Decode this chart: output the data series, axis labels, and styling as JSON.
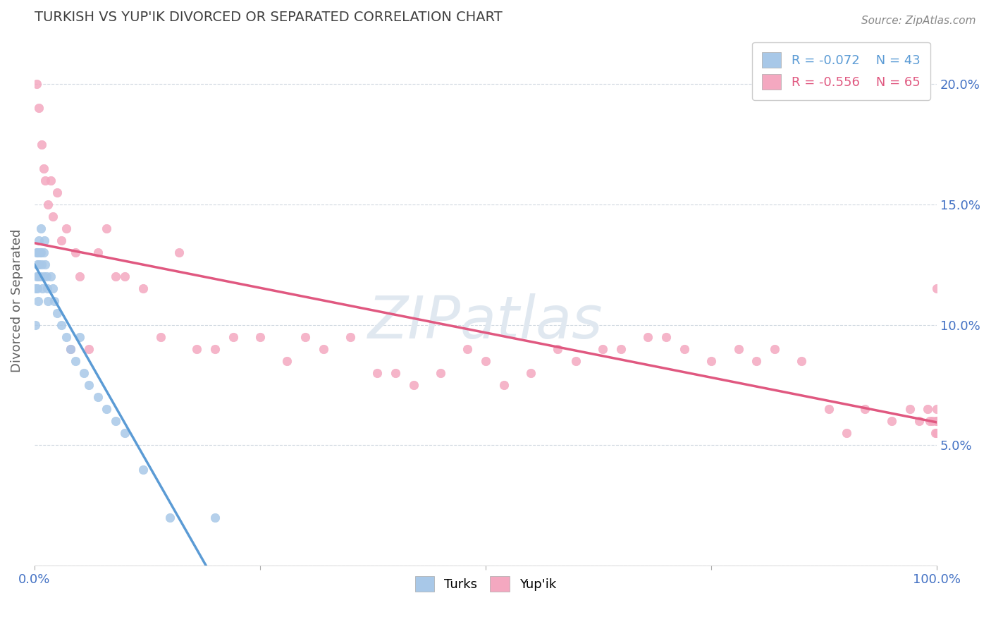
{
  "title": "TURKISH VS YUP'IK DIVORCED OR SEPARATED CORRELATION CHART",
  "source_text": "Source: ZipAtlas.com",
  "ylabel": "Divorced or Separated",
  "x_min": 0.0,
  "x_max": 1.0,
  "y_min": 0.0,
  "y_max": 0.22,
  "turks_color": "#a8c8e8",
  "yupik_color": "#f4a8c0",
  "turks_line_color": "#5b9bd5",
  "yupik_line_color": "#e05880",
  "dashed_line_color": "#a0c0e0",
  "turks_r": -0.072,
  "turks_n": 43,
  "yupik_r": -0.556,
  "yupik_n": 65,
  "legend_label_turks": "Turks",
  "legend_label_yupik": "Yup'ik",
  "turks_scatter_x": [
    0.001,
    0.001,
    0.002,
    0.002,
    0.003,
    0.003,
    0.003,
    0.004,
    0.004,
    0.004,
    0.005,
    0.005,
    0.006,
    0.006,
    0.007,
    0.007,
    0.008,
    0.009,
    0.01,
    0.01,
    0.011,
    0.012,
    0.013,
    0.014,
    0.015,
    0.018,
    0.02,
    0.022,
    0.025,
    0.03,
    0.035,
    0.04,
    0.045,
    0.05,
    0.055,
    0.06,
    0.07,
    0.08,
    0.09,
    0.1,
    0.12,
    0.15,
    0.2
  ],
  "turks_scatter_y": [
    0.115,
    0.1,
    0.13,
    0.12,
    0.13,
    0.125,
    0.115,
    0.13,
    0.12,
    0.11,
    0.135,
    0.125,
    0.13,
    0.12,
    0.14,
    0.13,
    0.125,
    0.115,
    0.13,
    0.12,
    0.135,
    0.125,
    0.12,
    0.115,
    0.11,
    0.12,
    0.115,
    0.11,
    0.105,
    0.1,
    0.095,
    0.09,
    0.085,
    0.095,
    0.08,
    0.075,
    0.07,
    0.065,
    0.06,
    0.055,
    0.04,
    0.02,
    0.02
  ],
  "yupik_scatter_x": [
    0.002,
    0.005,
    0.008,
    0.01,
    0.012,
    0.015,
    0.018,
    0.02,
    0.025,
    0.03,
    0.035,
    0.04,
    0.045,
    0.05,
    0.06,
    0.07,
    0.08,
    0.09,
    0.1,
    0.12,
    0.14,
    0.16,
    0.18,
    0.2,
    0.22,
    0.25,
    0.28,
    0.3,
    0.32,
    0.35,
    0.38,
    0.4,
    0.42,
    0.45,
    0.48,
    0.5,
    0.52,
    0.55,
    0.58,
    0.6,
    0.63,
    0.65,
    0.68,
    0.7,
    0.72,
    0.75,
    0.78,
    0.8,
    0.82,
    0.85,
    0.88,
    0.9,
    0.92,
    0.95,
    0.97,
    0.98,
    0.99,
    0.992,
    0.995,
    0.998,
    1.0,
    1.0,
    1.0,
    1.0,
    1.0
  ],
  "yupik_scatter_y": [
    0.2,
    0.19,
    0.175,
    0.165,
    0.16,
    0.15,
    0.16,
    0.145,
    0.155,
    0.135,
    0.14,
    0.09,
    0.13,
    0.12,
    0.09,
    0.13,
    0.14,
    0.12,
    0.12,
    0.115,
    0.095,
    0.13,
    0.09,
    0.09,
    0.095,
    0.095,
    0.085,
    0.095,
    0.09,
    0.095,
    0.08,
    0.08,
    0.075,
    0.08,
    0.09,
    0.085,
    0.075,
    0.08,
    0.09,
    0.085,
    0.09,
    0.09,
    0.095,
    0.095,
    0.09,
    0.085,
    0.09,
    0.085,
    0.09,
    0.085,
    0.065,
    0.055,
    0.065,
    0.06,
    0.065,
    0.06,
    0.065,
    0.06,
    0.06,
    0.055,
    0.06,
    0.055,
    0.065,
    0.06,
    0.115
  ],
  "grid_color": "#d0d8e0",
  "background_color": "#ffffff",
  "title_color": "#404040",
  "axis_label_color": "#606060",
  "tick_color": "#4472c4",
  "watermark_text": "ZIPatlas",
  "watermark_color": "#e0e8f0"
}
